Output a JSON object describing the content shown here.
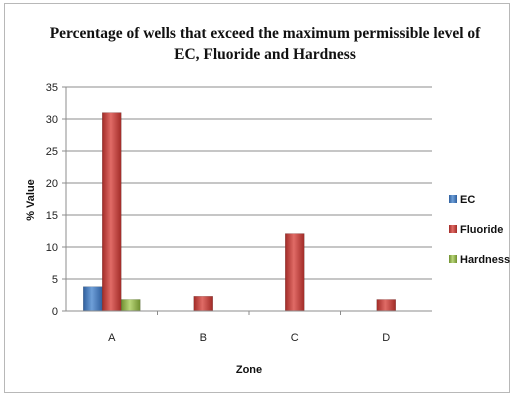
{
  "chart_data": {
    "type": "bar",
    "title_line1": "Percentage of wells that exceed the maximum permissible level of",
    "title_line2": "EC, Fluoride and Hardness",
    "xlabel": "Zone",
    "ylabel": "% Value",
    "categories": [
      "A",
      "B",
      "C",
      "D"
    ],
    "series": [
      {
        "name": "EC",
        "values": [
          3.8,
          0,
          0,
          0
        ],
        "color": "#4a7fc1"
      },
      {
        "name": "Fluoride",
        "values": [
          31,
          2.3,
          12.1,
          1.8
        ],
        "color": "#c0504d"
      },
      {
        "name": "Hardness",
        "values": [
          1.8,
          0,
          0,
          0
        ],
        "color": "#9bbb59"
      }
    ],
    "ylim": [
      0,
      35
    ],
    "yticks": [
      0,
      5,
      10,
      15,
      20,
      25,
      30,
      35
    ],
    "grid": true,
    "legend_position": "right"
  }
}
